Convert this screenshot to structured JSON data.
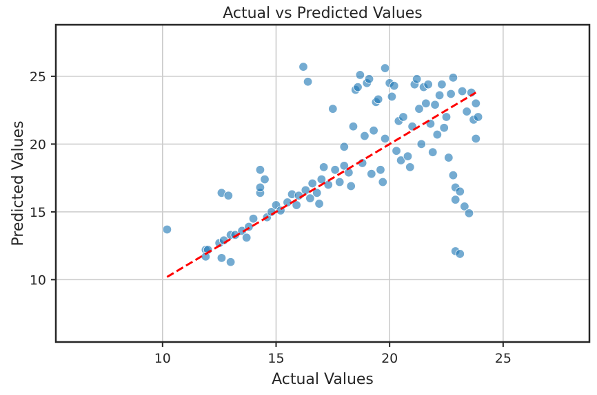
{
  "chart_data": {
    "type": "scatter",
    "title": "Actual vs Predicted Values",
    "xlabel": "Actual Values",
    "ylabel": "Predicted Values",
    "xlim": [
      5.3,
      28.8
    ],
    "ylim": [
      5.4,
      28.8
    ],
    "xticks": [
      10,
      15,
      20,
      25
    ],
    "yticks": [
      10,
      15,
      20,
      25
    ],
    "grid": true,
    "point_color": "#1f77b4",
    "reference_line": {
      "style": "dashed",
      "color": "#ff0000",
      "x": [
        10.2,
        23.8
      ],
      "y": [
        10.2,
        23.8
      ]
    },
    "series": [
      {
        "points": [
          [
            10.2,
            13.7
          ],
          [
            11.9,
            12.2
          ],
          [
            12.0,
            12.2
          ],
          [
            11.9,
            11.7
          ],
          [
            12.6,
            11.6
          ],
          [
            13.0,
            11.3
          ],
          [
            12.5,
            12.7
          ],
          [
            12.7,
            12.9
          ],
          [
            12.6,
            16.4
          ],
          [
            12.9,
            16.2
          ],
          [
            13.0,
            13.3
          ],
          [
            13.2,
            13.3
          ],
          [
            13.5,
            13.6
          ],
          [
            13.7,
            13.1
          ],
          [
            13.8,
            13.9
          ],
          [
            14.0,
            14.5
          ],
          [
            14.3,
            16.4
          ],
          [
            14.3,
            16.8
          ],
          [
            14.3,
            18.1
          ],
          [
            14.5,
            17.4
          ],
          [
            14.6,
            14.6
          ],
          [
            14.8,
            15.0
          ],
          [
            15.0,
            15.5
          ],
          [
            15.2,
            15.1
          ],
          [
            15.5,
            15.7
          ],
          [
            15.7,
            16.3
          ],
          [
            15.9,
            15.5
          ],
          [
            16.0,
            16.2
          ],
          [
            16.2,
            25.7
          ],
          [
            16.4,
            24.6
          ],
          [
            16.3,
            16.6
          ],
          [
            16.5,
            16.0
          ],
          [
            16.6,
            17.1
          ],
          [
            16.8,
            16.4
          ],
          [
            16.9,
            15.6
          ],
          [
            17.0,
            17.4
          ],
          [
            17.1,
            18.3
          ],
          [
            17.3,
            17.0
          ],
          [
            17.5,
            22.6
          ],
          [
            17.6,
            18.1
          ],
          [
            17.8,
            17.2
          ],
          [
            18.0,
            18.4
          ],
          [
            18.0,
            19.8
          ],
          [
            18.2,
            17.9
          ],
          [
            18.3,
            16.9
          ],
          [
            18.4,
            21.3
          ],
          [
            18.5,
            24.0
          ],
          [
            18.6,
            24.2
          ],
          [
            18.7,
            25.1
          ],
          [
            18.8,
            18.6
          ],
          [
            18.9,
            20.6
          ],
          [
            19.0,
            24.5
          ],
          [
            19.1,
            24.8
          ],
          [
            19.2,
            17.8
          ],
          [
            19.3,
            21.0
          ],
          [
            19.4,
            23.1
          ],
          [
            19.5,
            23.3
          ],
          [
            19.6,
            18.1
          ],
          [
            19.7,
            17.2
          ],
          [
            19.8,
            25.6
          ],
          [
            19.8,
            20.4
          ],
          [
            20.0,
            24.5
          ],
          [
            20.1,
            23.5
          ],
          [
            20.2,
            24.3
          ],
          [
            20.3,
            19.5
          ],
          [
            20.4,
            21.7
          ],
          [
            20.5,
            18.8
          ],
          [
            20.6,
            22.0
          ],
          [
            20.8,
            19.1
          ],
          [
            20.9,
            18.3
          ],
          [
            21.0,
            21.3
          ],
          [
            21.1,
            24.4
          ],
          [
            21.2,
            24.8
          ],
          [
            21.3,
            22.6
          ],
          [
            21.4,
            20.0
          ],
          [
            21.5,
            24.2
          ],
          [
            21.6,
            23.0
          ],
          [
            21.7,
            24.4
          ],
          [
            21.8,
            21.5
          ],
          [
            21.9,
            19.4
          ],
          [
            22.0,
            22.9
          ],
          [
            22.1,
            20.7
          ],
          [
            22.2,
            23.6
          ],
          [
            22.3,
            24.4
          ],
          [
            22.4,
            21.2
          ],
          [
            22.5,
            22.0
          ],
          [
            22.6,
            19.0
          ],
          [
            22.7,
            23.7
          ],
          [
            22.8,
            24.9
          ],
          [
            22.8,
            17.7
          ],
          [
            22.9,
            16.8
          ],
          [
            22.9,
            15.9
          ],
          [
            22.9,
            12.1
          ],
          [
            23.1,
            11.9
          ],
          [
            23.1,
            16.5
          ],
          [
            23.3,
            15.4
          ],
          [
            23.5,
            14.9
          ],
          [
            23.2,
            23.9
          ],
          [
            23.4,
            22.4
          ],
          [
            23.6,
            23.8
          ],
          [
            23.7,
            21.8
          ],
          [
            23.8,
            20.4
          ],
          [
            23.8,
            23.0
          ],
          [
            23.9,
            22.0
          ]
        ]
      }
    ]
  }
}
